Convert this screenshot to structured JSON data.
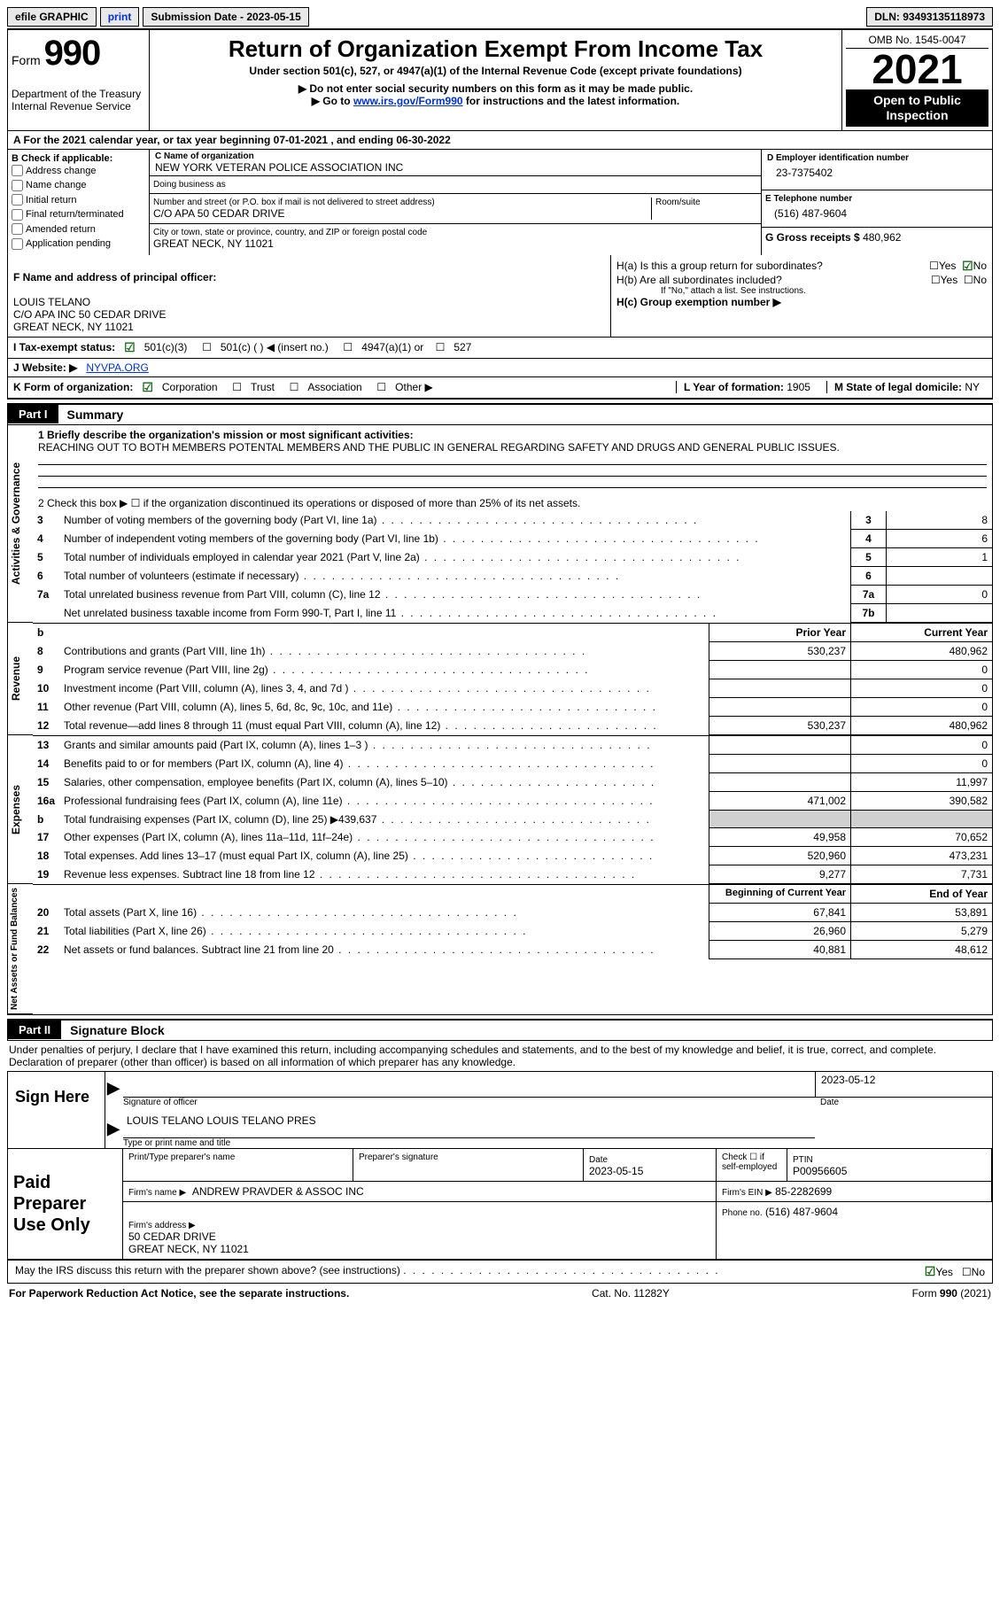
{
  "topbar": {
    "efile": "efile GRAPHIC",
    "print": "print",
    "submission": "Submission Date - 2023-05-15",
    "dln_label": "DLN:",
    "dln": "93493135118973"
  },
  "header": {
    "form_word": "Form",
    "form_num": "990",
    "dept": "Department of the Treasury\nInternal Revenue Service",
    "title": "Return of Organization Exempt From Income Tax",
    "subtitle": "Under section 501(c), 527, or 4947(a)(1) of the Internal Revenue Code (except private foundations)",
    "note1": "▶ Do not enter social security numbers on this form as it may be made public.",
    "note2_prefix": "▶ Go to ",
    "note2_link_text": "www.irs.gov/Form990",
    "note2_suffix": " for instructions and the latest information.",
    "omb": "OMB No. 1545-0047",
    "year": "2021",
    "badge": "Open to Public Inspection"
  },
  "A": {
    "text": "A For the 2021 calendar year, or tax year beginning 07-01-2021    , and ending 06-30-2022"
  },
  "B": {
    "label": "B Check if applicable:",
    "items": [
      "Address change",
      "Name change",
      "Initial return",
      "Final return/terminated",
      "Amended return",
      "Application pending"
    ]
  },
  "C": {
    "name_label": "C Name of organization",
    "name": "NEW YORK VETERAN POLICE ASSOCIATION INC",
    "dba_label": "Doing business as",
    "dba": "",
    "street_label": "Number and street (or P.O. box if mail is not delivered to street address)",
    "room_label": "Room/suite",
    "street": "C/O APA 50 CEDAR DRIVE",
    "city_label": "City or town, state or province, country, and ZIP or foreign postal code",
    "city": "GREAT NECK, NY  11021"
  },
  "D": {
    "label": "D Employer identification number",
    "value": "23-7375402"
  },
  "E": {
    "label": "E Telephone number",
    "value": "(516) 487-9604"
  },
  "G": {
    "label": "G Gross receipts $",
    "value": "480,962"
  },
  "F": {
    "label": "F  Name and address of principal officer:",
    "value": "LOUIS TELANO\nC/O APA INC 50 CEDAR DRIVE\nGREAT NECK, NY  11021"
  },
  "H": {
    "a_label": "H(a)  Is this a group return for subordinates?",
    "a_yes": "Yes",
    "a_no": "No",
    "b_label": "H(b)  Are all subordinates included?",
    "b_note": "If \"No,\" attach a list. See instructions.",
    "c_label": "H(c)  Group exemption number ▶"
  },
  "I": {
    "label": "I   Tax-exempt status:",
    "opts": [
      "501(c)(3)",
      "501(c) (  ) ◀ (insert no.)",
      "4947(a)(1) or",
      "527"
    ]
  },
  "J": {
    "label": "J   Website: ▶",
    "value": "NYVPA.ORG"
  },
  "K": {
    "label": "K Form of organization:",
    "opts": [
      "Corporation",
      "Trust",
      "Association",
      "Other ▶"
    ]
  },
  "L": {
    "label": "L Year of formation:",
    "value": "1905"
  },
  "M": {
    "label": "M State of legal domicile:",
    "value": "NY"
  },
  "Part1": {
    "bar_label": "Part I",
    "bar_title": "Summary",
    "sections": {
      "gov": {
        "label": "Activities & Governance",
        "mission_prompt": "1  Briefly describe the organization's mission or most significant activities:",
        "mission": "REACHING OUT TO BOTH MEMBERS POTENTAL MEMBERS AND THE PUBLIC IN GENERAL REGARDING SAFETY AND DRUGS AND GENERAL PUBLIC ISSUES.",
        "line2": "2   Check this box ▶ ☐  if the organization discontinued its operations or disposed of more than 25% of its net assets.",
        "lines": [
          {
            "n": "3",
            "desc": "Number of voting members of the governing body (Part VI, line 1a)",
            "box": "3",
            "val": "8"
          },
          {
            "n": "4",
            "desc": "Number of independent voting members of the governing body (Part VI, line 1b)",
            "box": "4",
            "val": "6"
          },
          {
            "n": "5",
            "desc": "Total number of individuals employed in calendar year 2021 (Part V, line 2a)",
            "box": "5",
            "val": "1"
          },
          {
            "n": "6",
            "desc": "Total number of volunteers (estimate if necessary)",
            "box": "6",
            "val": ""
          },
          {
            "n": "7a",
            "desc": "Total unrelated business revenue from Part VIII, column (C), line 12",
            "box": "7a",
            "val": "0"
          },
          {
            "n": "",
            "desc": "Net unrelated business taxable income from Form 990-T, Part I, line 11",
            "box": "7b",
            "val": ""
          }
        ]
      },
      "rev": {
        "label": "Revenue",
        "pri_hdr": "Prior Year",
        "cur_hdr": "Current Year",
        "lines": [
          {
            "n": "8",
            "desc": "Contributions and grants (Part VIII, line 1h)",
            "pri": "530,237",
            "cur": "480,962"
          },
          {
            "n": "9",
            "desc": "Program service revenue (Part VIII, line 2g)",
            "pri": "",
            "cur": "0"
          },
          {
            "n": "10",
            "desc": "Investment income (Part VIII, column (A), lines 3, 4, and 7d )",
            "pri": "",
            "cur": "0"
          },
          {
            "n": "11",
            "desc": "Other revenue (Part VIII, column (A), lines 5, 6d, 8c, 9c, 10c, and 11e)",
            "pri": "",
            "cur": "0"
          },
          {
            "n": "12",
            "desc": "Total revenue—add lines 8 through 11 (must equal Part VIII, column (A), line 12)",
            "pri": "530,237",
            "cur": "480,962"
          }
        ]
      },
      "exp": {
        "label": "Expenses",
        "lines": [
          {
            "n": "13",
            "desc": "Grants and similar amounts paid (Part IX, column (A), lines 1–3 )",
            "pri": "",
            "cur": "0"
          },
          {
            "n": "14",
            "desc": "Benefits paid to or for members (Part IX, column (A), line 4)",
            "pri": "",
            "cur": "0"
          },
          {
            "n": "15",
            "desc": "Salaries, other compensation, employee benefits (Part IX, column (A), lines 5–10)",
            "pri": "",
            "cur": "11,997"
          },
          {
            "n": "16a",
            "desc": "Professional fundraising fees (Part IX, column (A), line 11e)",
            "pri": "471,002",
            "cur": "390,582"
          },
          {
            "n": "b",
            "desc": "Total fundraising expenses (Part IX, column (D), line 25) ▶439,637",
            "pri": "GREY",
            "cur": "GREY"
          },
          {
            "n": "17",
            "desc": "Other expenses (Part IX, column (A), lines 11a–11d, 11f–24e)",
            "pri": "49,958",
            "cur": "70,652"
          },
          {
            "n": "18",
            "desc": "Total expenses. Add lines 13–17 (must equal Part IX, column (A), line 25)",
            "pri": "520,960",
            "cur": "473,231"
          },
          {
            "n": "19",
            "desc": "Revenue less expenses. Subtract line 18 from line 12",
            "pri": "9,277",
            "cur": "7,731"
          }
        ]
      },
      "net": {
        "label": "Net Assets or Fund Balances",
        "boy_hdr": "Beginning of Current Year",
        "eoy_hdr": "End of Year",
        "lines": [
          {
            "n": "20",
            "desc": "Total assets (Part X, line 16)",
            "pri": "67,841",
            "cur": "53,891"
          },
          {
            "n": "21",
            "desc": "Total liabilities (Part X, line 26)",
            "pri": "26,960",
            "cur": "5,279"
          },
          {
            "n": "22",
            "desc": "Net assets or fund balances. Subtract line 21 from line 20",
            "pri": "40,881",
            "cur": "48,612"
          }
        ]
      }
    }
  },
  "Part2": {
    "bar_label": "Part II",
    "bar_title": "Signature Block",
    "declaration": "Under penalties of perjury, I declare that I have examined this return, including accompanying schedules and statements, and to the best of my knowledge and belief, it is true, correct, and complete. Declaration of preparer (other than officer) is based on all information of which preparer has any knowledge.",
    "sign_here": "Sign Here",
    "sig_officer": "Signature of officer",
    "sig_date": "2023-05-12",
    "sig_date_label": "Date",
    "printed": "LOUIS TELANO  LOUIS TELANO PRES",
    "printed_label": "Type or print name and title"
  },
  "Preparer": {
    "left": "Paid Preparer Use Only",
    "name_label": "Print/Type preparer's name",
    "sig_label": "Preparer's signature",
    "date_label": "Date",
    "date": "2023-05-15",
    "check_label": "Check ☐ if self-employed",
    "ptin_label": "PTIN",
    "ptin": "P00956605",
    "firm_name_label": "Firm's name     ▶",
    "firm_name": "ANDREW PRAVDER & ASSOC INC",
    "firm_ein_label": "Firm's EIN ▶",
    "firm_ein": "85-2282699",
    "firm_addr_label": "Firm's address ▶",
    "firm_addr": "50 CEDAR DRIVE\nGREAT NECK, NY  11021",
    "firm_phone_label": "Phone no.",
    "firm_phone": "(516) 487-9604"
  },
  "Footer": {
    "discuss": "May the IRS discuss this return with the preparer shown above? (see instructions)",
    "yes": "Yes",
    "no": "No",
    "pra": "For Paperwork Reduction Act Notice, see the separate instructions.",
    "cat": "Cat. No. 11282Y",
    "form": "Form 990 (2021)"
  },
  "colors": {
    "link": "#0033cc",
    "black": "#000000",
    "grey": "#d0d0d0",
    "check": "#1a6b1a"
  }
}
